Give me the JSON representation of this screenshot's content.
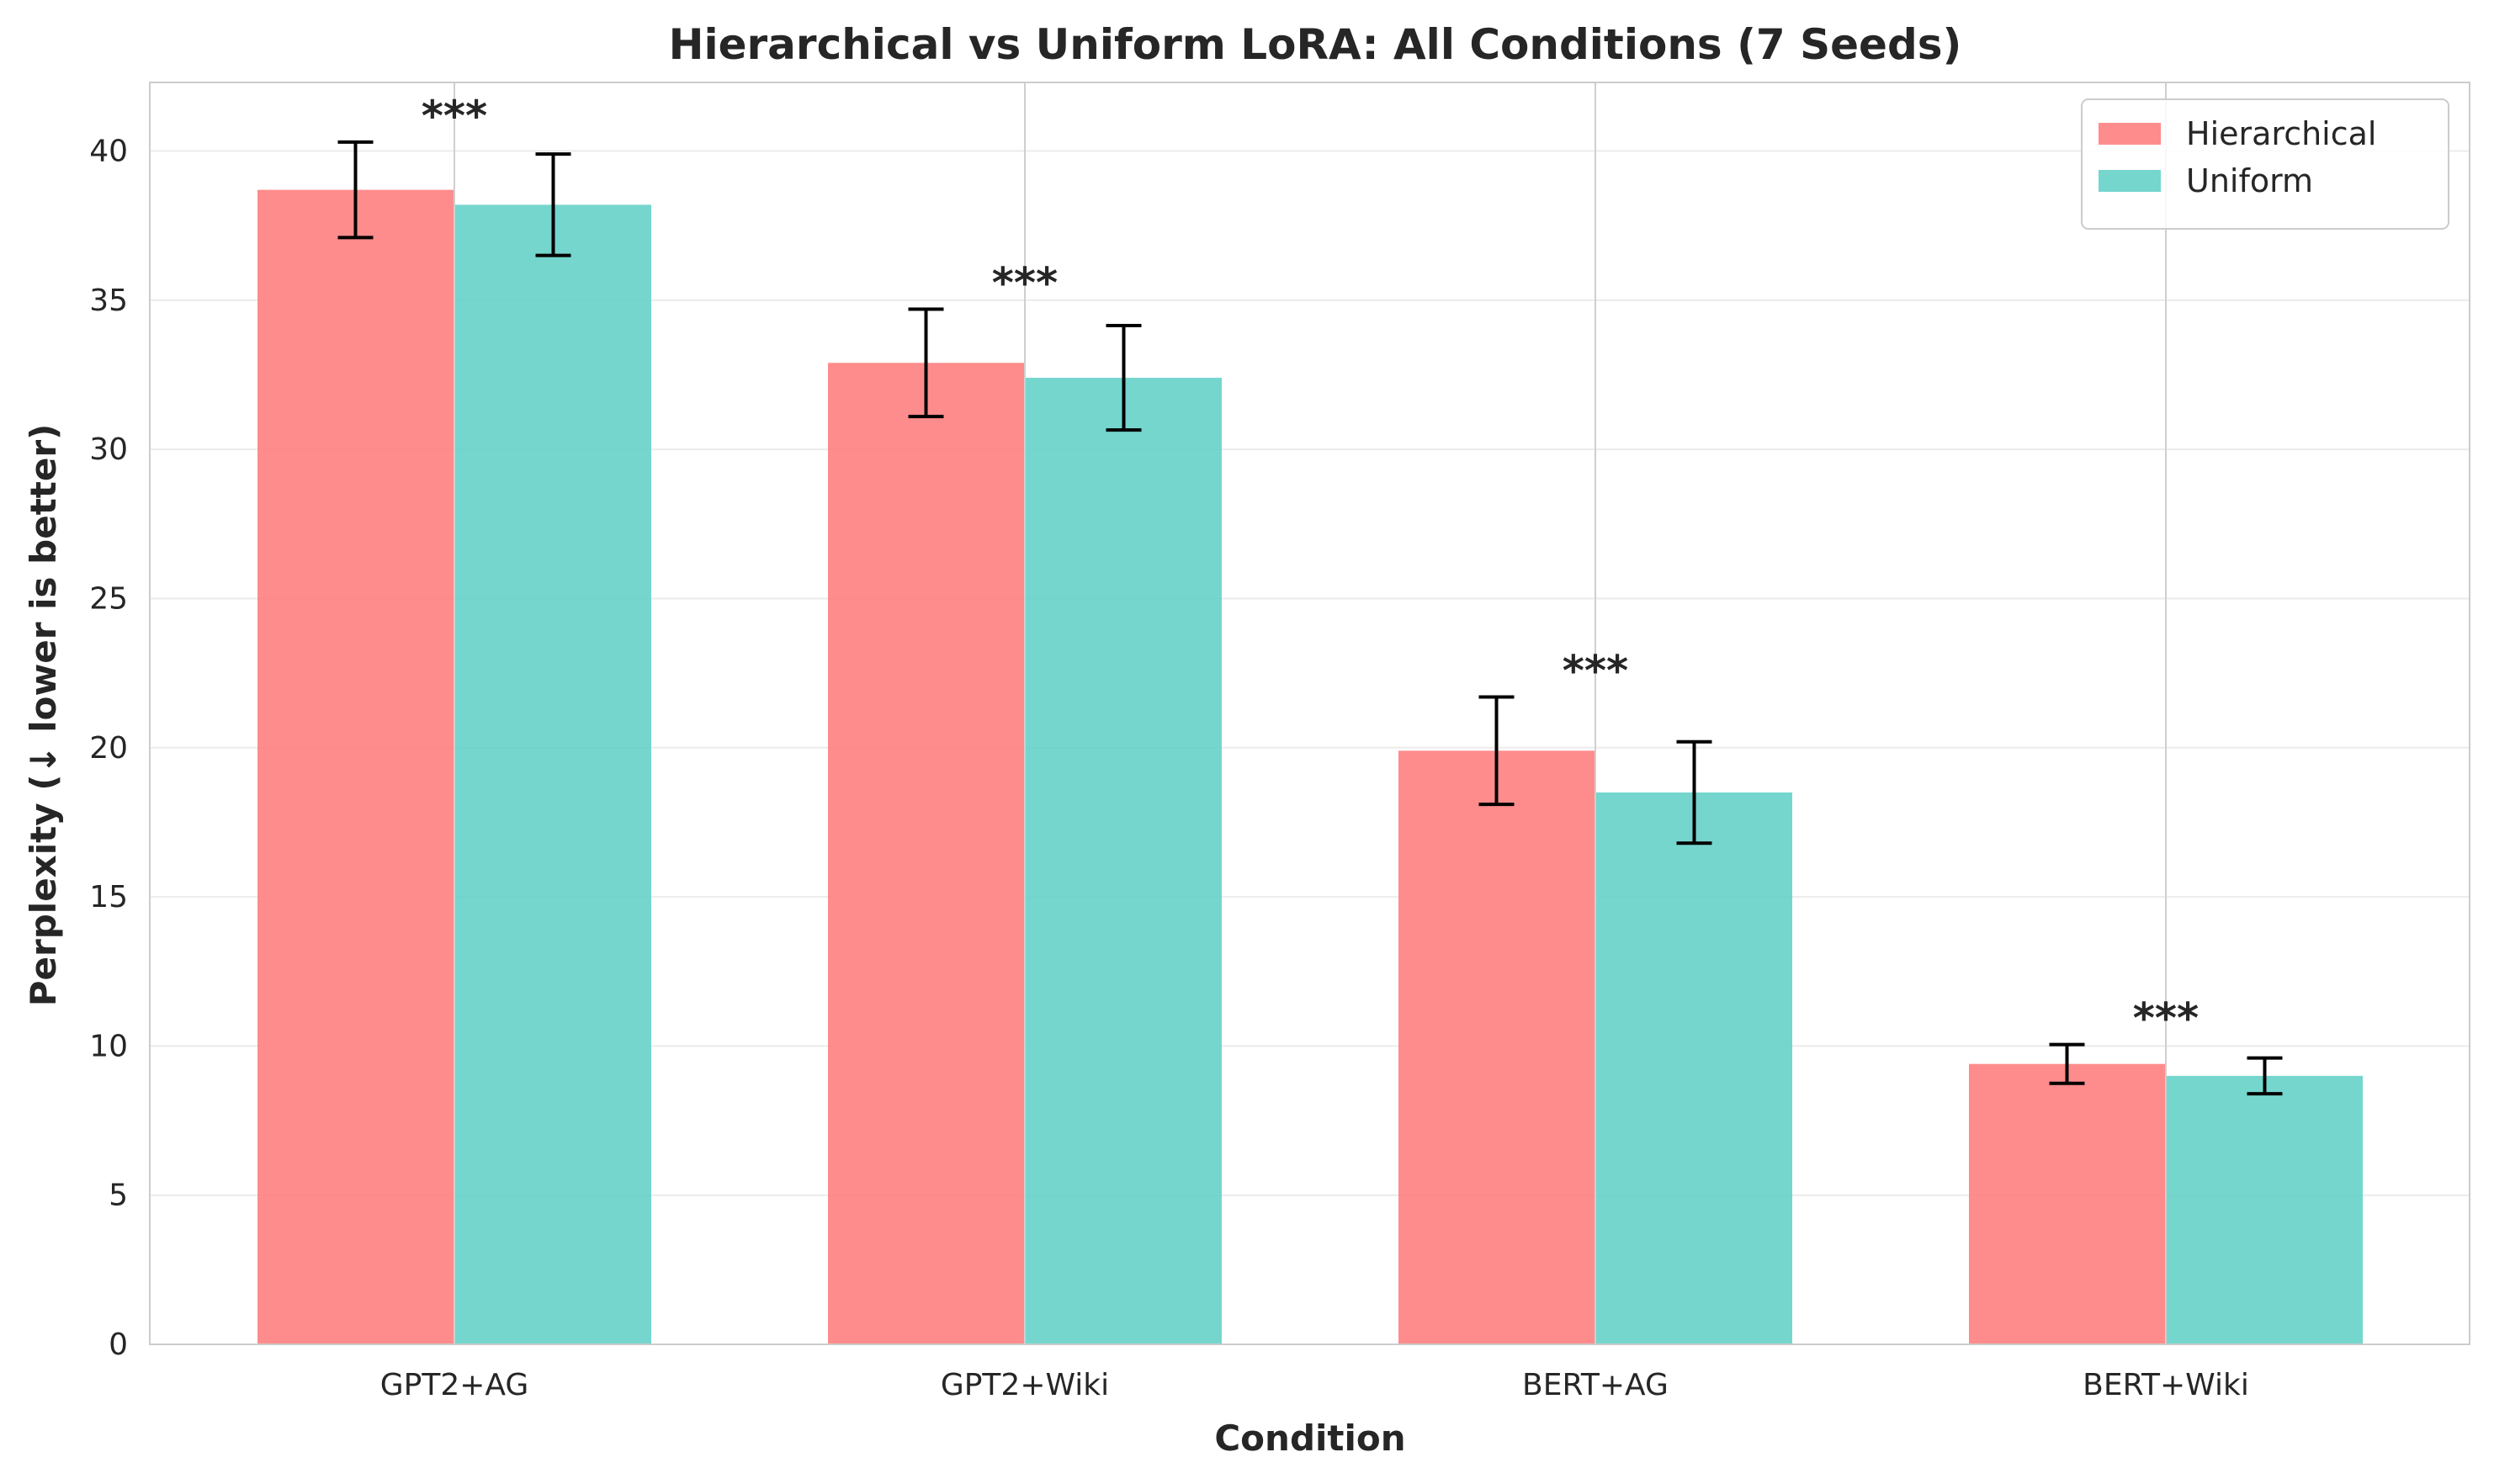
{
  "chart_data": {
    "type": "bar",
    "title": "Hierarchical vs Uniform LoRA: All Conditions (7 Seeds)",
    "xlabel": "Condition",
    "ylabel": "Perplexity (↓ lower is better)",
    "categories": [
      "GPT2+AG",
      "GPT2+Wiki",
      "BERT+AG",
      "BERT+Wiki"
    ],
    "series": [
      {
        "name": "Hierarchical",
        "color": "#ff7f7f",
        "values": [
          38.7,
          32.9,
          19.9,
          9.4
        ],
        "errors": [
          1.6,
          1.8,
          1.8,
          0.65
        ]
      },
      {
        "name": "Uniform",
        "color": "#66d1c9",
        "values": [
          38.2,
          32.4,
          18.5,
          9.0
        ],
        "errors": [
          1.7,
          1.75,
          1.7,
          0.6
        ]
      }
    ],
    "annotations": [
      "***",
      "***",
      "***",
      "***"
    ],
    "yticks": [
      0,
      5,
      10,
      15,
      20,
      25,
      30,
      35,
      40
    ],
    "ylim": [
      0,
      42.3
    ],
    "grid": true,
    "legend_position": "top-right"
  }
}
